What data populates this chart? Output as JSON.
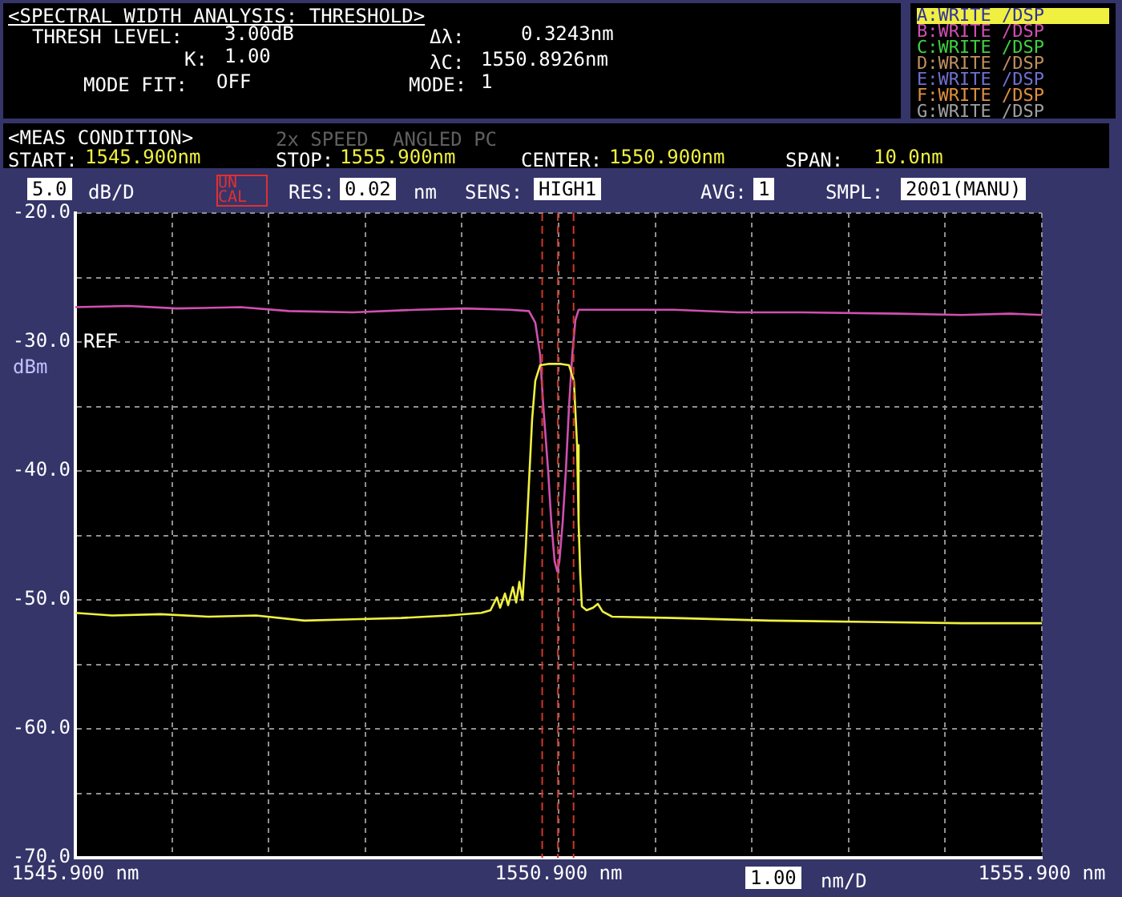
{
  "chart_data": {
    "type": "line",
    "title": "<SPECTRAL WIDTH ANALYSIS: THRESHOLD>",
    "ylabel": "dBm",
    "xlim": [
      1545.9,
      1555.9
    ],
    "xticks": [
      {
        "value": 1545.9,
        "label": "1545.900 nm"
      },
      {
        "value": 1546.9,
        "label": null
      },
      {
        "value": 1547.9,
        "label": null
      },
      {
        "value": 1548.9,
        "label": null
      },
      {
        "value": 1549.9,
        "label": null
      },
      {
        "value": 1550.9,
        "label": "1550.900 nm"
      },
      {
        "value": 1551.9,
        "label": null
      },
      {
        "value": 1552.9,
        "label": null
      },
      {
        "value": 1553.9,
        "label": null
      },
      {
        "value": 1554.9,
        "label": null
      },
      {
        "value": 1555.9,
        "label": "1555.900 nm"
      }
    ],
    "ylim": [
      -70,
      -20
    ],
    "yticks": [
      {
        "value": -20,
        "label": "-20.0"
      },
      {
        "value": -25,
        "label": null
      },
      {
        "value": -30,
        "label": "-30.0"
      },
      {
        "value": -35,
        "label": null
      },
      {
        "value": -40,
        "label": "-40.0"
      },
      {
        "value": -45,
        "label": null
      },
      {
        "value": -50,
        "label": "-50.0"
      },
      {
        "value": -55,
        "label": null
      },
      {
        "value": -60,
        "label": "-60.0"
      },
      {
        "value": -65,
        "label": null
      },
      {
        "value": -70,
        "label": "-70.0"
      }
    ],
    "grid": true,
    "legend": "top right",
    "line_style": "solid",
    "marker": "none",
    "series": [
      {
        "name": "A:WRITE /DSP",
        "color": "#f0f040",
        "x": [
          1545.9,
          1546.28,
          1546.78,
          1547.28,
          1547.77,
          1548.27,
          1548.77,
          1549.27,
          1549.76,
          1550.1,
          1550.195,
          1550.262,
          1550.295,
          1550.345,
          1550.378,
          1550.427,
          1550.461,
          1550.494,
          1550.527,
          1550.56,
          1550.593,
          1550.626,
          1550.659,
          1550.709,
          1550.792,
          1550.925,
          1551.008,
          1551.058,
          1551.091,
          1551.107,
          1551.124,
          1551.141,
          1551.19,
          1551.257,
          1551.306,
          1551.356,
          1551.456,
          1552.09,
          1553.08,
          1554.08,
          1555.07,
          1555.9
        ],
        "values": [
          -51.0,
          -51.2,
          -51.1,
          -51.3,
          -51.2,
          -51.6,
          -51.5,
          -51.4,
          -51.2,
          -51.0,
          -50.8,
          -49.8,
          -50.6,
          -49.5,
          -50.4,
          -49.0,
          -50.2,
          -48.6,
          -50.0,
          -46,
          -41,
          -36,
          -33,
          -31.8,
          -31.7,
          -31.7,
          -31.8,
          -33,
          -38,
          -44,
          -48,
          -50.5,
          -50.8,
          -50.6,
          -50.3,
          -50.9,
          -51.3,
          -51.4,
          -51.6,
          -51.7,
          -51.8,
          -51.8
        ]
      },
      {
        "name": "B:WRITE /DSP",
        "color": "#d050b0",
        "x": [
          1545.9,
          1546.45,
          1546.95,
          1547.61,
          1548.11,
          1548.77,
          1549.43,
          1549.93,
          1550.394,
          1550.593,
          1550.659,
          1550.709,
          1550.742,
          1550.792,
          1550.825,
          1550.859,
          1550.887,
          1550.908,
          1550.942,
          1550.975,
          1551.008,
          1551.041,
          1551.074,
          1551.107,
          1551.42,
          1552.09,
          1552.75,
          1553.41,
          1554.41,
          1555.07,
          1555.57,
          1555.9
        ],
        "values": [
          -27.3,
          -27.2,
          -27.4,
          -27.3,
          -27.6,
          -27.7,
          -27.5,
          -27.4,
          -27.5,
          -27.6,
          -28.5,
          -31,
          -35,
          -40,
          -44,
          -47,
          -47.8,
          -47,
          -44,
          -40,
          -35,
          -31,
          -28.3,
          -27.5,
          -27.5,
          -27.5,
          -27.7,
          -27.7,
          -27.8,
          -27.9,
          -27.8,
          -27.9
        ]
      }
    ],
    "ref_lines": [
      {
        "axis": "x",
        "value": 1550.7305,
        "color": "#d03828",
        "line_style": "dashed"
      },
      {
        "axis": "x",
        "value": 1550.8926,
        "color": "#d03828",
        "line_style": "dashed"
      },
      {
        "axis": "x",
        "value": 1551.0548,
        "color": "#d03828",
        "line_style": "dashed"
      }
    ],
    "annotations": [
      "THRESH LEVEL:",
      "3.00dB",
      "K:",
      "1.00",
      "MODE FIT:",
      "OFF",
      "Δλ:",
      "0.3243nm",
      "λC:",
      "1550.8926nm",
      "MODE:",
      "1",
      "<MEAS CONDITION>",
      "2x SPEED",
      "ANGLED PC",
      "START:",
      "1545.900nm",
      "STOP:",
      "1555.900nm",
      "CENTER:",
      "1550.900nm",
      "SPAN:",
      "10.0nm",
      "5.0",
      "dB/D",
      "UN CAL",
      "RES:",
      "0.02",
      "nm",
      "SENS:",
      "HIGH1",
      "AVG:",
      "1",
      "SMPL:",
      "2001(MANU)",
      "1.00",
      "nm/D",
      "REF",
      "C:WRITE /DSP",
      "D:WRITE /DSP",
      "E:WRITE /DSP",
      "F:WRITE /DSP",
      "G:WRITE /DSP"
    ]
  }
}
